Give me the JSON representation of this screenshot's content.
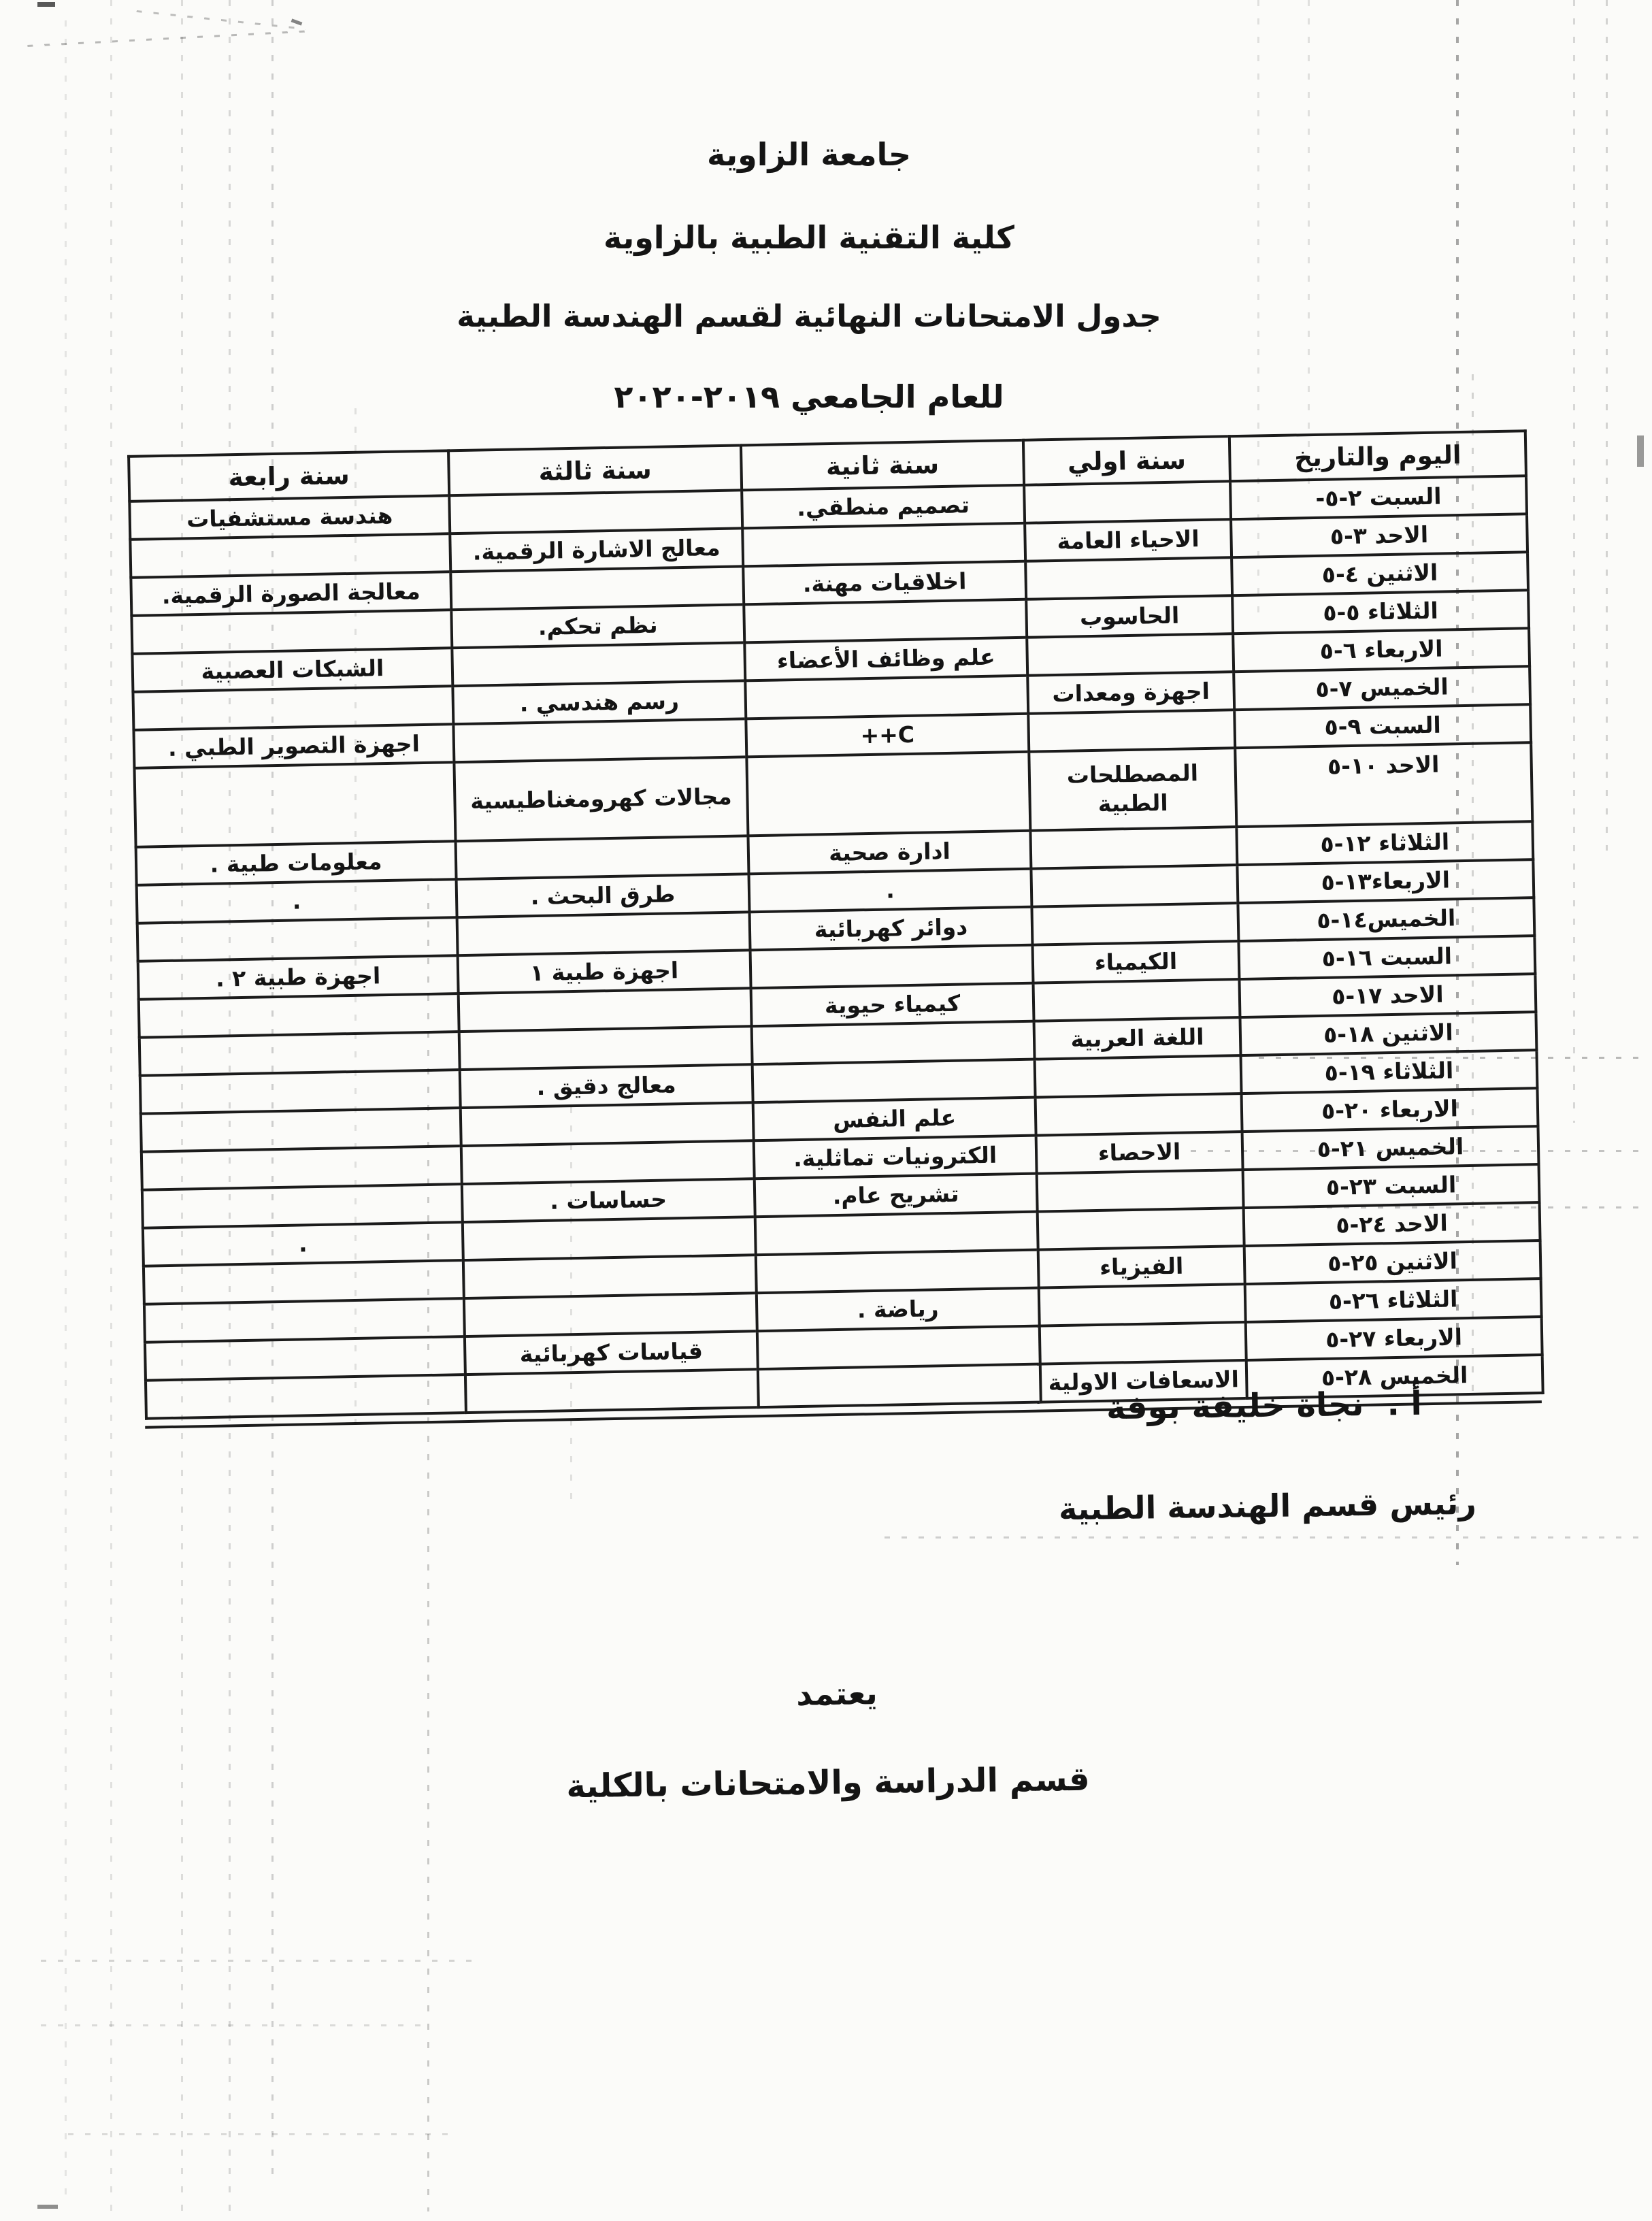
{
  "document": {
    "titles": [
      "جامعة الزاوية",
      "كلية التقنية الطبية بالزاوية",
      "جدول الامتحانات النهائية لقسم الهندسة الطبية",
      "للعام الجامعي ٢٠١٩-٢٠٢٠"
    ]
  },
  "table": {
    "headers": {
      "date": "اليوم والتاريخ",
      "year1": "سنة اولي",
      "year2": "سنة ثانية",
      "year3": "سنة ثالثة",
      "year4": "سنة رابعة"
    },
    "rows": [
      {
        "date": "السبت ٢-٥-",
        "year1": "",
        "year2": "تصميم منطقي.",
        "year3": "",
        "year4": "هندسة مستشفيات"
      },
      {
        "date": "الاحد ٣-٥",
        "year1": "الاحياء العامة",
        "year2": "",
        "year3": "معالج الاشارة الرقمية.",
        "year4": ""
      },
      {
        "date": "الاثنين ٤-٥",
        "year1": "",
        "year2": "اخلاقيات مهنة.",
        "year3": "",
        "year4": "معالجة الصورة الرقمية."
      },
      {
        "date": "الثلاثاء ٥-٥",
        "year1": "الحاسوب",
        "year2": "",
        "year3": "نظم تحكم.",
        "year4": ""
      },
      {
        "date": "الاربعاء ٦-٥",
        "year1": "",
        "year2": "علم وظائف الأعضاء",
        "year3": "",
        "year4": "الشبكات العصبية"
      },
      {
        "date": "الخميس ٧-٥",
        "year1": "اجهزة ومعدات",
        "year2": "",
        "year3": "رسم هندسي .",
        "year4": ""
      },
      {
        "date": "السبت ٩-٥",
        "year1": "",
        "year2": "C++",
        "year3": "",
        "year4": "اجهزة التصوير الطبي ."
      },
      {
        "date": "الاحد ١٠-٥",
        "year1": "المصطلحات الطبية",
        "year2": "",
        "year3": "مجالات كهرومغناطيسية",
        "year4": "",
        "tall": true
      },
      {
        "date": "الثلاثاء ١٢-٥",
        "year1": "",
        "year2": "ادارة صحية",
        "year3": "",
        "year4": "معلومات طبية ."
      },
      {
        "date": "الاربعاء١٣-٥",
        "year1": "",
        "year2": ".",
        "year3": "طرق البحث .",
        "year4": "."
      },
      {
        "date": "الخميس١٤-٥",
        "year1": "",
        "year2": "دوائر كهربائية",
        "year3": "",
        "year4": ""
      },
      {
        "date": "السبت ١٦-٥",
        "year1": "الكيمياء",
        "year2": "",
        "year3": "اجهزة طبية ١",
        "year4": "اجهزة طبية ٢ ."
      },
      {
        "date": "الاحد ١٧-٥",
        "year1": "",
        "year2": "كيمياء حيوية",
        "year3": "",
        "year4": ""
      },
      {
        "date": "الاثنين ١٨-٥",
        "year1": "اللغة العربية",
        "year2": "",
        "year3": "",
        "year4": ""
      },
      {
        "date": "الثلاثاء ١٩-٥",
        "year1": "",
        "year2": "",
        "year3": "معالج دقيق .",
        "year4": ""
      },
      {
        "date": "الاربعاء ٢٠-٥",
        "year1": "",
        "year2": "علم النفس",
        "year3": "",
        "year4": ""
      },
      {
        "date": "الخميس ٢١-٥",
        "year1": "الاحصاء",
        "year2": "الكترونيات تماثلية.",
        "year3": "",
        "year4": ""
      },
      {
        "date": "السبت ٢٣-٥",
        "year1": "",
        "year2": "تشريح عام.",
        "year3": "حساسات .",
        "year4": ""
      },
      {
        "date": "الاحد ٢٤-٥",
        "year1": "",
        "year2": "",
        "year3": "",
        "year4": "."
      },
      {
        "date": "الاثنين ٢٥-٥",
        "year1": "الفيزياء",
        "year2": "",
        "year3": "",
        "year4": ""
      },
      {
        "date": "الثلاثاء ٢٦-٥",
        "year1": "",
        "year2": "رياضة .",
        "year3": "",
        "year4": ""
      },
      {
        "date": "الاربعاء ٢٧-٥",
        "year1": "",
        "year2": "",
        "year3": "قياسات كهربائية",
        "year4": ""
      },
      {
        "date": "الخميس ٢٨-٥",
        "year1": "الاسعافات الاولية",
        "year2": "",
        "year3": "",
        "year4": ""
      }
    ]
  },
  "footer": {
    "signature_prefix": "أ .",
    "signature_name": "نجاة خليفة بوفة",
    "signature_role": "رئيس قسم الهندسة الطبية",
    "approval_word": "يعتمد",
    "approval_department": "قسم الدراسة والامتحانات بالكلية"
  }
}
